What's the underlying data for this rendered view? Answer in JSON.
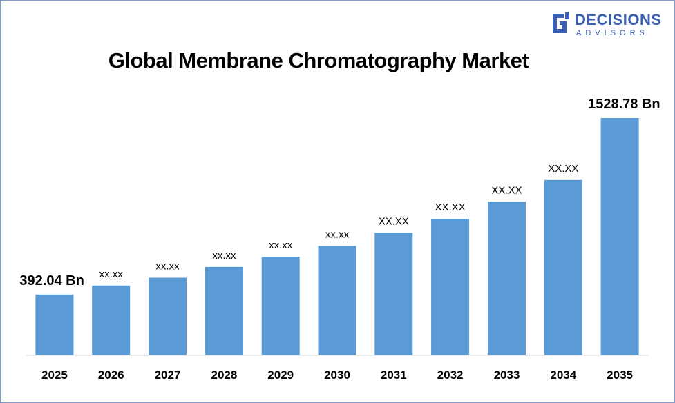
{
  "logo": {
    "line1": "DECISIONS",
    "line2": "ADVISORS",
    "color": "#3a5fb4"
  },
  "chart_data": {
    "type": "bar",
    "title": "Global Membrane Chromatography Market",
    "xlabel": "",
    "ylabel": "",
    "categories": [
      "2025",
      "2026",
      "2027",
      "2028",
      "2029",
      "2030",
      "2031",
      "2032",
      "2033",
      "2034",
      "2035"
    ],
    "values": [
      392.04,
      450,
      500,
      570,
      635,
      705,
      790,
      880,
      990,
      1130,
      1528.78
    ],
    "labels": [
      "392.04 Bn",
      "xx.xx",
      "xx.xx",
      "xx.xx",
      "xx.xx",
      "xx.xx",
      "XX.XX",
      "XX.XX",
      "XX.XX",
      "XX.XX",
      "1528.78 Bn"
    ],
    "ylim": [
      0,
      1600
    ],
    "grid": false,
    "legend": "none",
    "bar_color": "#5b9bd5"
  }
}
